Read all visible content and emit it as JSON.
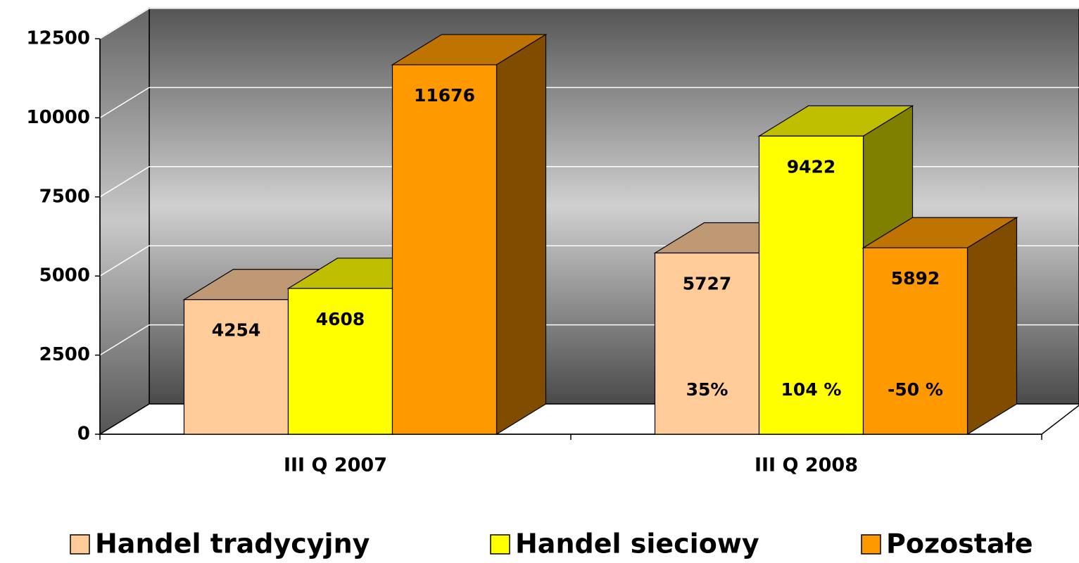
{
  "chart_data": {
    "type": "bar3d",
    "categories": [
      "III Q 2007",
      "III Q 2008"
    ],
    "series": [
      {
        "name": "Handel tradycyjny",
        "color": "#FFCC99",
        "values": [
          4254,
          5727
        ],
        "change_label": "35%"
      },
      {
        "name": "Handel sieciowy",
        "color": "#FFFF00",
        "values": [
          4608,
          9422
        ],
        "change_label": "104 %"
      },
      {
        "name": "Pozostałe",
        "color": "#FF9900",
        "values": [
          11676,
          5892
        ],
        "change_label": "-50 %"
      }
    ],
    "ylim": [
      0,
      12500
    ],
    "yticks": [
      0,
      2500,
      5000,
      7500,
      10000,
      12500
    ],
    "grid": true,
    "legend": "bottom"
  }
}
